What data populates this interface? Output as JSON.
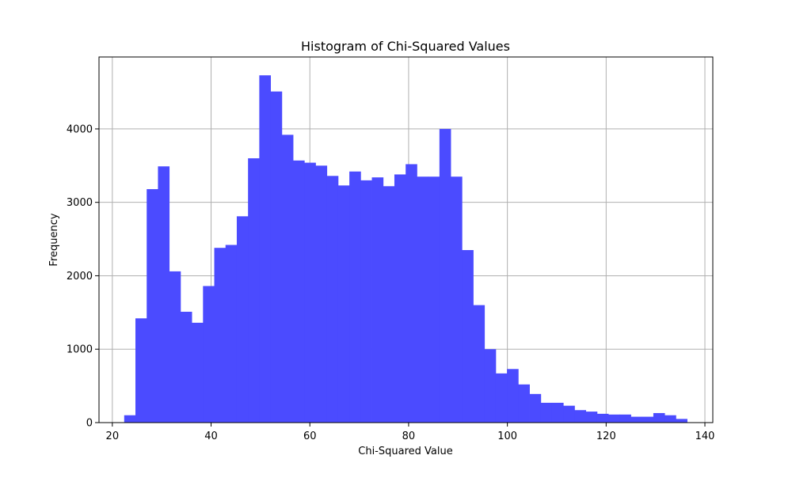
{
  "chart_data": {
    "type": "bar",
    "title": "Histogram of Chi-Squared Values",
    "xlabel": "Chi-Squared Value",
    "ylabel": "Frequency",
    "xlim": [
      17.3,
      141.6
    ],
    "ylim": [
      0,
      4980
    ],
    "grid": true,
    "bar_color": "#4b4bff",
    "grid_color": "#b0b0b0",
    "x_ticks": [
      20,
      40,
      60,
      80,
      100,
      120,
      140
    ],
    "y_ticks": [
      0,
      1000,
      2000,
      3000,
      4000
    ],
    "bin_start": 22.4,
    "bin_width": 2.28,
    "values": [
      100,
      1420,
      3180,
      3490,
      2060,
      1510,
      1360,
      1860,
      2380,
      2420,
      2810,
      3600,
      4730,
      4510,
      3920,
      3570,
      3540,
      3500,
      3360,
      3230,
      3420,
      3300,
      3340,
      3220,
      3380,
      3520,
      3350,
      3350,
      4000,
      3350,
      2350,
      1600,
      1000,
      670,
      730,
      520,
      390,
      270,
      270,
      230,
      170,
      150,
      120,
      110,
      110,
      80,
      80,
      130,
      100,
      50
    ]
  }
}
